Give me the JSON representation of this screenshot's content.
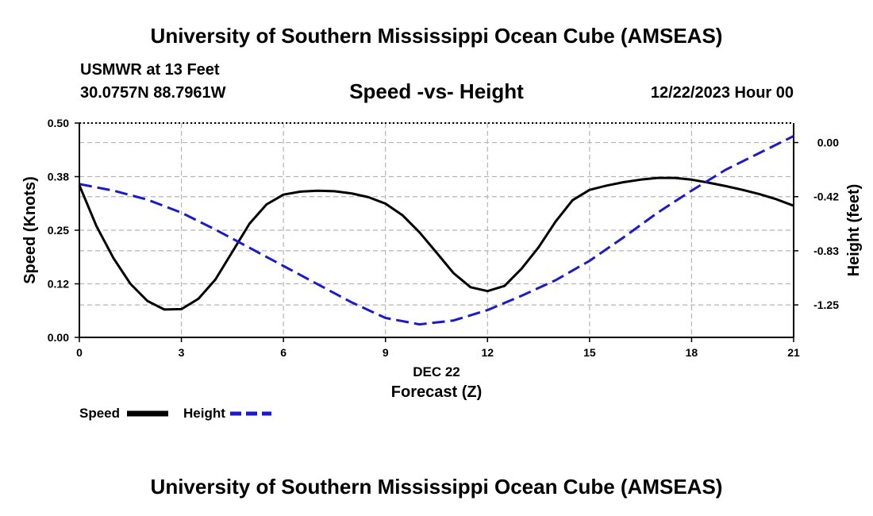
{
  "header": {
    "title": "University of Southern Mississippi Ocean Cube (AMSEAS)",
    "station": "USMWR at 13 Feet",
    "coords": "30.0757N  88.7961W",
    "chart_title": "Speed -vs- Height",
    "datetime": "12/22/2023 Hour 00"
  },
  "footer": {
    "title": "University of Southern Mississippi Ocean Cube (AMSEAS)"
  },
  "legend": {
    "speed": "Speed",
    "height": "Height"
  },
  "colors": {
    "speed": "#000000",
    "height": "#1a1acc",
    "grid": "#b4b4b4"
  },
  "chart_data": {
    "type": "line",
    "title": "Speed -vs- Height",
    "xlabel": "Forecast (Z)",
    "x_sublabel": "DEC 22",
    "ylabel": "Speed (Knots)",
    "y2label": "Height (feet)",
    "xlim": [
      0,
      21
    ],
    "ylim": [
      0,
      0.5
    ],
    "y2lim": [
      -1.5,
      0.15
    ],
    "xticks": [
      0,
      3,
      6,
      9,
      12,
      15,
      18,
      21
    ],
    "yticks": [
      0,
      0.125,
      0.25,
      0.375,
      0.5
    ],
    "yticklabels": [
      "0.00",
      "0.12",
      "0.25",
      "0.38",
      "0.50"
    ],
    "y2ticks": [
      0,
      -0.4167,
      -0.8333,
      -1.25
    ],
    "y2ticklabels": [
      "0.00",
      "-0.42",
      "-0.83",
      "-1.25"
    ],
    "grid": true,
    "series": [
      {
        "name": "Speed",
        "axis": "left",
        "x": [
          0,
          0.5,
          1,
          1.5,
          2,
          2.5,
          3,
          3.5,
          4,
          4.5,
          5,
          5.5,
          6,
          6.5,
          7,
          7.5,
          8,
          8.5,
          9,
          9.5,
          10,
          10.5,
          11,
          11.5,
          12,
          12.5,
          13,
          13.5,
          14,
          14.5,
          15,
          15.5,
          16,
          16.5,
          17,
          17.5,
          18,
          18.5,
          19,
          19.5,
          20,
          20.5,
          21
        ],
        "values": [
          0.355,
          0.26,
          0.185,
          0.125,
          0.085,
          0.065,
          0.066,
          0.09,
          0.135,
          0.2,
          0.265,
          0.31,
          0.333,
          0.34,
          0.342,
          0.341,
          0.336,
          0.327,
          0.312,
          0.285,
          0.245,
          0.198,
          0.15,
          0.117,
          0.108,
          0.12,
          0.16,
          0.21,
          0.27,
          0.32,
          0.344,
          0.354,
          0.362,
          0.368,
          0.372,
          0.372,
          0.368,
          0.361,
          0.353,
          0.344,
          0.334,
          0.322,
          0.307
        ]
      },
      {
        "name": "Height",
        "axis": "right",
        "x": [
          0,
          1,
          2,
          3,
          4,
          5,
          6,
          7,
          8,
          9,
          10,
          11,
          12,
          13,
          14,
          15,
          16,
          17,
          18,
          19,
          20,
          21
        ],
        "values": [
          -0.32,
          -0.37,
          -0.44,
          -0.54,
          -0.67,
          -0.81,
          -0.95,
          -1.09,
          -1.23,
          -1.35,
          -1.4,
          -1.37,
          -1.29,
          -1.18,
          -1.06,
          -0.91,
          -0.73,
          -0.54,
          -0.37,
          -0.21,
          -0.08,
          0.05
        ]
      }
    ]
  }
}
